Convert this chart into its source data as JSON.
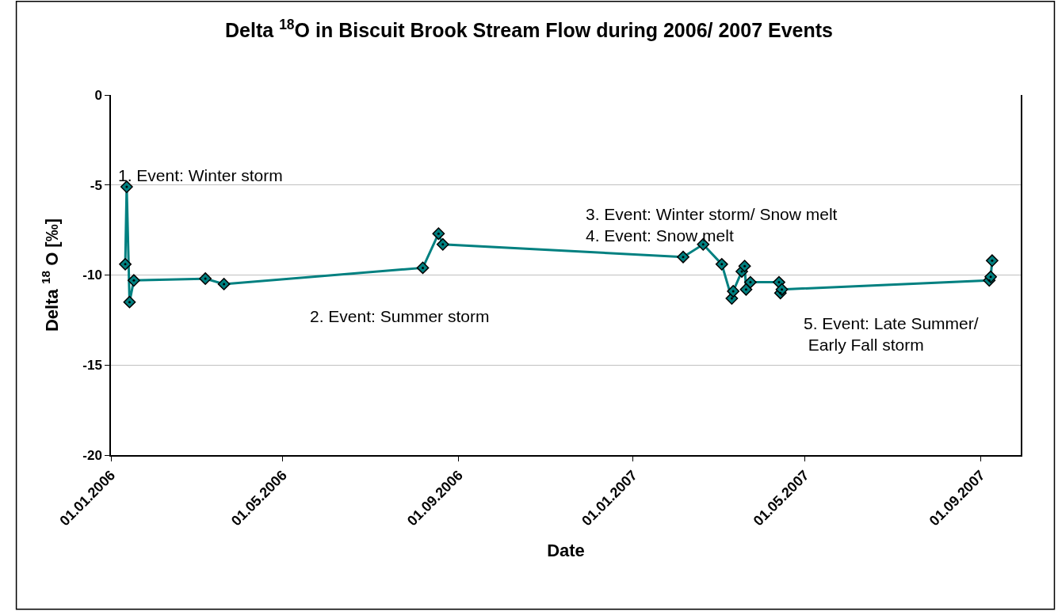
{
  "chart_data": {
    "type": "line",
    "title": "Delta $^{18}$O in Biscuit Brook Stream Flow during 2006/ 2007 Events",
    "xlabel": "Date",
    "ylabel": "Delta $^{18}$ O [‰]",
    "series": [
      {
        "color": "#008080",
        "x": [
          "2006-01-11",
          "2006-01-12",
          "2006-01-14",
          "2006-01-17",
          "2006-03-08",
          "2006-03-21",
          "2006-08-07",
          "2006-08-18",
          "2006-08-21",
          "2007-02-05",
          "2007-02-19",
          "2007-03-04",
          "2007-03-11",
          "2007-03-12",
          "2007-03-18",
          "2007-03-20",
          "2007-03-21",
          "2007-03-24",
          "2007-04-13",
          "2007-04-14",
          "2007-04-15",
          "2007-09-07",
          "2007-09-08",
          "2007-09-09"
        ],
        "values": [
          -9.4,
          -5.1,
          -11.5,
          -10.3,
          -10.2,
          -10.5,
          -9.6,
          -7.7,
          -8.3,
          -9.0,
          -8.3,
          -9.4,
          -11.3,
          -10.9,
          -9.8,
          -9.5,
          -10.8,
          -10.4,
          -10.4,
          -11.0,
          -10.8,
          -10.3,
          -10.1,
          -9.2
        ]
      }
    ],
    "xlim": [
      "2006-01-01",
      "2007-09-29"
    ],
    "xticks": [
      {
        "value": "2006-01-01",
        "label": "01.01.2006"
      },
      {
        "value": "2006-05-01",
        "label": "01.05.2006"
      },
      {
        "value": "2006-09-01",
        "label": "01.09.2006"
      },
      {
        "value": "2007-01-01",
        "label": "01.01.2007"
      },
      {
        "value": "2007-05-01",
        "label": "01.05.2007"
      },
      {
        "value": "2007-09-01",
        "label": "01.09.2007"
      }
    ],
    "ylim": [
      -20,
      0
    ],
    "yticks": [
      -20,
      -15,
      -10,
      -5,
      0
    ],
    "grid": "y",
    "marker": "diamond",
    "line_style": "solid",
    "annotations": [
      "1. Event: Winter storm",
      "2. Event: Summer storm",
      "3. Event: Winter storm/ Snow melt",
      "4. Event: Snow melt",
      "5. Event: Late Summer/\n Early Fall storm"
    ]
  }
}
